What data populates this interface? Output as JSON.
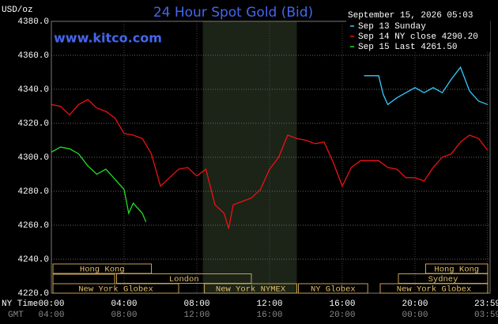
{
  "chart_data": {
    "type": "line",
    "title": "24 Hour Spot Gold (Bid)",
    "y_label": "USD/oz",
    "site": "www.kitco.com",
    "timestamp": "September 15, 2026 05:03",
    "x_label": "NY Time",
    "x2_label": "GMT",
    "xlim": [
      0,
      24
    ],
    "ylim": [
      4220,
      4380
    ],
    "xticks": [
      {
        "value": 0,
        "label": "00:00"
      },
      {
        "value": 4,
        "label": "04:00"
      },
      {
        "value": 8,
        "label": "08:00"
      },
      {
        "value": 12,
        "label": "12:00"
      },
      {
        "value": 16,
        "label": "16:00"
      },
      {
        "value": 20,
        "label": "20:00"
      },
      {
        "value": 23.98,
        "label": "23:59"
      }
    ],
    "xtick_labels_gmt": [
      "04:00",
      "08:00",
      "12:00",
      "16:00",
      "20:00",
      "00:00",
      "03:59"
    ],
    "yticks": [
      {
        "value": 4220,
        "label": "4220.0"
      },
      {
        "value": 4240,
        "label": "4240.0"
      },
      {
        "value": 4260,
        "label": "4260.0"
      },
      {
        "value": 4280,
        "label": "4280.0"
      },
      {
        "value": 4300,
        "label": "4300.0"
      },
      {
        "value": 4320,
        "label": "4320.0"
      },
      {
        "value": 4340,
        "label": "4340.0"
      },
      {
        "value": 4360,
        "label": "4360.0"
      },
      {
        "value": 4380,
        "label": "4380.0"
      }
    ],
    "grid": true,
    "shaded_span": [
      8.33,
      13.5
    ],
    "sessions": [
      {
        "label": "Hong Kong",
        "start": 0,
        "end": 5.5,
        "row": 0
      },
      {
        "label": "Hong Kong",
        "start": 20.5,
        "end": 24,
        "row": 0
      },
      {
        "label": "London",
        "start": 3.5,
        "end": 11,
        "row": 1
      },
      {
        "label": "Sydney",
        "start": 19,
        "end": 24,
        "row": 1
      },
      {
        "label": "New York Globex",
        "start": 0,
        "end": 7,
        "row": 2
      },
      {
        "label": "New York NYMEX",
        "start": 8.33,
        "end": 13.5,
        "row": 2
      },
      {
        "label": "NY Globex",
        "start": 13.5,
        "end": 17.4,
        "row": 2
      },
      {
        "label": "New York Globex",
        "start": 18,
        "end": 24,
        "row": 2
      }
    ],
    "series": [
      {
        "name": "Sep 13 Sunday",
        "color": "#33ccff",
        "x": [
          17.2,
          18,
          18.25,
          18.5,
          19,
          19.5,
          20,
          20.5,
          21,
          21.5,
          22,
          22.5,
          23,
          23.5,
          24
        ],
        "values": [
          4348,
          4348,
          4337,
          4331,
          4335,
          4338,
          4341,
          4338,
          4341,
          4338,
          4346,
          4353,
          4339,
          4333,
          4331
        ]
      },
      {
        "name": "Sep 14 NY close 4290.20",
        "color": "#ee1111",
        "x": [
          0,
          0.5,
          1,
          1.5,
          2,
          2.5,
          3,
          3.5,
          4,
          4.5,
          5,
          5.5,
          6,
          6.5,
          7,
          7.5,
          8,
          8.5,
          9,
          9.5,
          9.75,
          10,
          10.5,
          11,
          11.5,
          12,
          12.5,
          13,
          13.5,
          14,
          14.5,
          15,
          15.5,
          16,
          16.5,
          17,
          17.5,
          18,
          18.5,
          19,
          19.5,
          20,
          20.5,
          21,
          21.5,
          22,
          22.5,
          23,
          23.5,
          24
        ],
        "values": [
          4331,
          4330,
          4325,
          4331,
          4334,
          4329,
          4327,
          4323,
          4314,
          4313,
          4311,
          4302,
          4283,
          4288,
          4293,
          4294,
          4289,
          4293,
          4272,
          4267,
          4258,
          4272,
          4274,
          4276,
          4281,
          4293,
          4300,
          4313,
          4311,
          4310,
          4308,
          4309,
          4297,
          4283,
          4294,
          4298,
          4298,
          4298,
          4294,
          4293,
          4288,
          4288,
          4286,
          4294,
          4300,
          4302,
          4309,
          4313,
          4311,
          4304
        ]
      },
      {
        "name": "Sep 15 Last 4261.50",
        "color": "#22dd22",
        "x": [
          0,
          0.5,
          1,
          1.5,
          2,
          2.5,
          3,
          3.5,
          4,
          4.25,
          4.5,
          5,
          5.2
        ],
        "values": [
          4303,
          4306,
          4305,
          4302,
          4295,
          4290,
          4293,
          4287,
          4281,
          4267,
          4273,
          4267,
          4262
        ]
      }
    ]
  }
}
